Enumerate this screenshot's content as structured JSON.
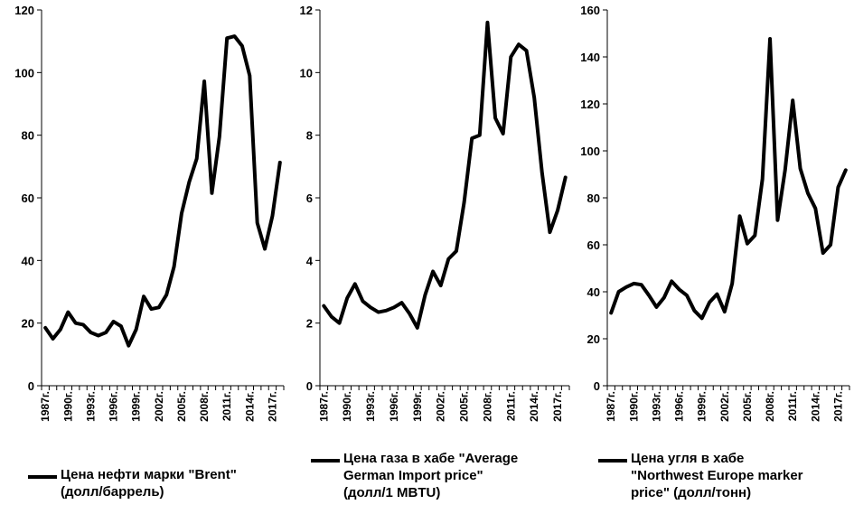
{
  "chart_data": [
    {
      "type": "line",
      "legend": "Цена нефти марки \"Brent\"\n(долл/баррель)",
      "x": [
        1987,
        1988,
        1989,
        1990,
        1991,
        1992,
        1993,
        1994,
        1995,
        1996,
        1997,
        1998,
        1999,
        2000,
        2001,
        2002,
        2003,
        2004,
        2005,
        2006,
        2007,
        2008,
        2009,
        2010,
        2011,
        2012,
        2013,
        2014,
        2015,
        2016,
        2017,
        2018
      ],
      "values": [
        18.5,
        15,
        18,
        23.5,
        20,
        19.5,
        17,
        16,
        17,
        20.5,
        19,
        12.8,
        18,
        28.5,
        24.5,
        25,
        29,
        38,
        55,
        65,
        72.5,
        97.2,
        61.5,
        79.5,
        111,
        111.6,
        108.5,
        99,
        52,
        43.7,
        54.2,
        71.3
      ],
      "ylim": [
        0,
        120
      ],
      "yticks": [
        0,
        20,
        40,
        60,
        80,
        100,
        120
      ],
      "color": "#000000"
    },
    {
      "type": "line",
      "legend": "Цена газа в хабе \"Average\nGerman Import price\"\n(долл/1 MBTU)",
      "x": [
        1987,
        1988,
        1989,
        1990,
        1991,
        1992,
        1993,
        1994,
        1995,
        1996,
        1997,
        1998,
        1999,
        2000,
        2001,
        2002,
        2003,
        2004,
        2005,
        2006,
        2007,
        2008,
        2009,
        2010,
        2011,
        2012,
        2013,
        2014,
        2015,
        2016,
        2017,
        2018
      ],
      "values": [
        2.55,
        2.2,
        2.0,
        2.8,
        3.25,
        2.7,
        2.5,
        2.35,
        2.4,
        2.5,
        2.65,
        2.3,
        1.85,
        2.9,
        3.65,
        3.2,
        4.05,
        4.3,
        5.85,
        7.9,
        8.0,
        11.6,
        8.55,
        8.05,
        10.5,
        10.9,
        10.7,
        9.2,
        6.8,
        4.9,
        5.6,
        6.65
      ],
      "ylim": [
        0,
        12
      ],
      "yticks": [
        0,
        2,
        4,
        6,
        8,
        10,
        12
      ],
      "color": "#000000"
    },
    {
      "type": "line",
      "legend": "Цена угля в хабе\n\"Northwest Europe marker\nprice\" (долл/тонн)",
      "x": [
        1987,
        1988,
        1989,
        1990,
        1991,
        1992,
        1993,
        1994,
        1995,
        1996,
        1997,
        1998,
        1999,
        2000,
        2001,
        2002,
        2003,
        2004,
        2005,
        2006,
        2007,
        2008,
        2009,
        2010,
        2011,
        2012,
        2013,
        2014,
        2015,
        2016,
        2017,
        2018
      ],
      "values": [
        31,
        40,
        42,
        43.5,
        43,
        38.5,
        33.5,
        37.5,
        44.5,
        41,
        38.5,
        32,
        28.7,
        35.5,
        39,
        31.5,
        43.5,
        72.2,
        60.5,
        64,
        88,
        147.7,
        70.5,
        92,
        121.5,
        92.5,
        82,
        75.5,
        56.5,
        60,
        84.5,
        91.8
      ],
      "ylim": [
        0,
        160
      ],
      "yticks": [
        0,
        20,
        40,
        60,
        80,
        100,
        120,
        140,
        160
      ],
      "color": "#000000"
    }
  ],
  "xtick_labels": [
    "1987г.",
    "1990г.",
    "1993г.",
    "1996г.",
    "1999г.",
    "2002г.",
    "2005г.",
    "2008г.",
    "2011г.",
    "2014г.",
    "2017г."
  ]
}
